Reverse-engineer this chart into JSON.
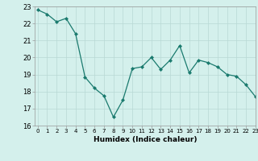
{
  "x": [
    0,
    1,
    2,
    3,
    4,
    5,
    6,
    7,
    8,
    9,
    10,
    11,
    12,
    13,
    14,
    15,
    16,
    17,
    18,
    19,
    20,
    21,
    22,
    23
  ],
  "y": [
    22.8,
    22.55,
    22.1,
    22.3,
    21.4,
    18.85,
    18.2,
    17.75,
    16.5,
    17.5,
    19.35,
    19.45,
    20.0,
    19.3,
    19.85,
    20.7,
    19.1,
    19.85,
    19.7,
    19.45,
    19.0,
    18.9,
    18.4,
    17.7
  ],
  "xlabel": "Humidex (Indice chaleur)",
  "ylim": [
    16,
    23
  ],
  "xlim": [
    -0.3,
    23
  ],
  "yticks": [
    16,
    17,
    18,
    19,
    20,
    21,
    22,
    23
  ],
  "xticks": [
    0,
    1,
    2,
    3,
    4,
    5,
    6,
    7,
    8,
    9,
    10,
    11,
    12,
    13,
    14,
    15,
    16,
    17,
    18,
    19,
    20,
    21,
    22,
    23
  ],
  "line_color": "#1a7a6e",
  "marker_color": "#1a7a6e",
  "bg_color": "#d4f0ec",
  "grid_color": "#b8d8d4",
  "axis_color": "#555555"
}
